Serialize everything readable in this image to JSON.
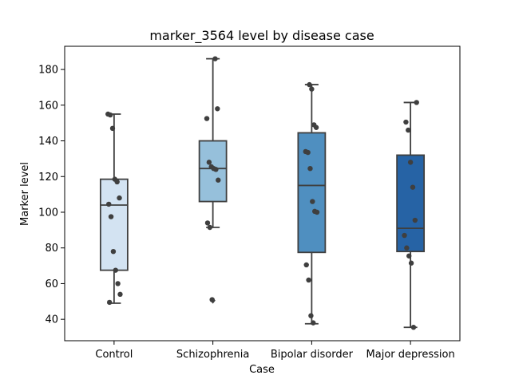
{
  "chart_data": {
    "type": "box",
    "title": "marker_3564 level by disease case",
    "xlabel": "Case",
    "ylabel": "Marker level",
    "ylim": [
      28,
      193
    ],
    "yticks": [
      40,
      60,
      80,
      100,
      120,
      140,
      160,
      180
    ],
    "categories": [
      "Control",
      "Schizophrenia",
      "Bipolar disorder",
      "Major depression"
    ],
    "colors": [
      "#d3e3f2",
      "#96c0db",
      "#4f8fc0",
      "#2663a5"
    ],
    "grid": false,
    "boxes": [
      {
        "category": "Control",
        "whisker_low": 49,
        "q1": 67.5,
        "median": 104,
        "q3": 118.5,
        "whisker_high": 155,
        "outliers": [],
        "points": [
          155,
          154.5,
          147,
          118.5,
          117,
          108,
          104.5,
          97.5,
          78,
          67.5,
          60,
          54,
          49.5
        ]
      },
      {
        "category": "Schizophrenia",
        "whisker_low": 91.5,
        "q1": 106,
        "median": 124.5,
        "q3": 140,
        "whisker_high": 186,
        "outliers": [
          50.5
        ],
        "points": [
          186,
          158,
          152.5,
          128,
          125.5,
          124.5,
          124,
          118,
          94,
          91.5,
          51
        ]
      },
      {
        "category": "Bipolar disorder",
        "whisker_low": 37.5,
        "q1": 77.5,
        "median": 115,
        "q3": 144.5,
        "whisker_high": 171.5,
        "outliers": [],
        "points": [
          171.5,
          169,
          149,
          147.5,
          134,
          133.5,
          124.5,
          106,
          100.5,
          100,
          70.5,
          62,
          42,
          38
        ]
      },
      {
        "category": "Major depression",
        "whisker_low": 35.5,
        "q1": 78,
        "median": 91,
        "q3": 132,
        "whisker_high": 161.5,
        "outliers": [],
        "points": [
          161.5,
          150.5,
          146,
          128,
          114,
          95.5,
          87,
          80,
          75.5,
          71.5,
          35.5
        ]
      }
    ]
  }
}
